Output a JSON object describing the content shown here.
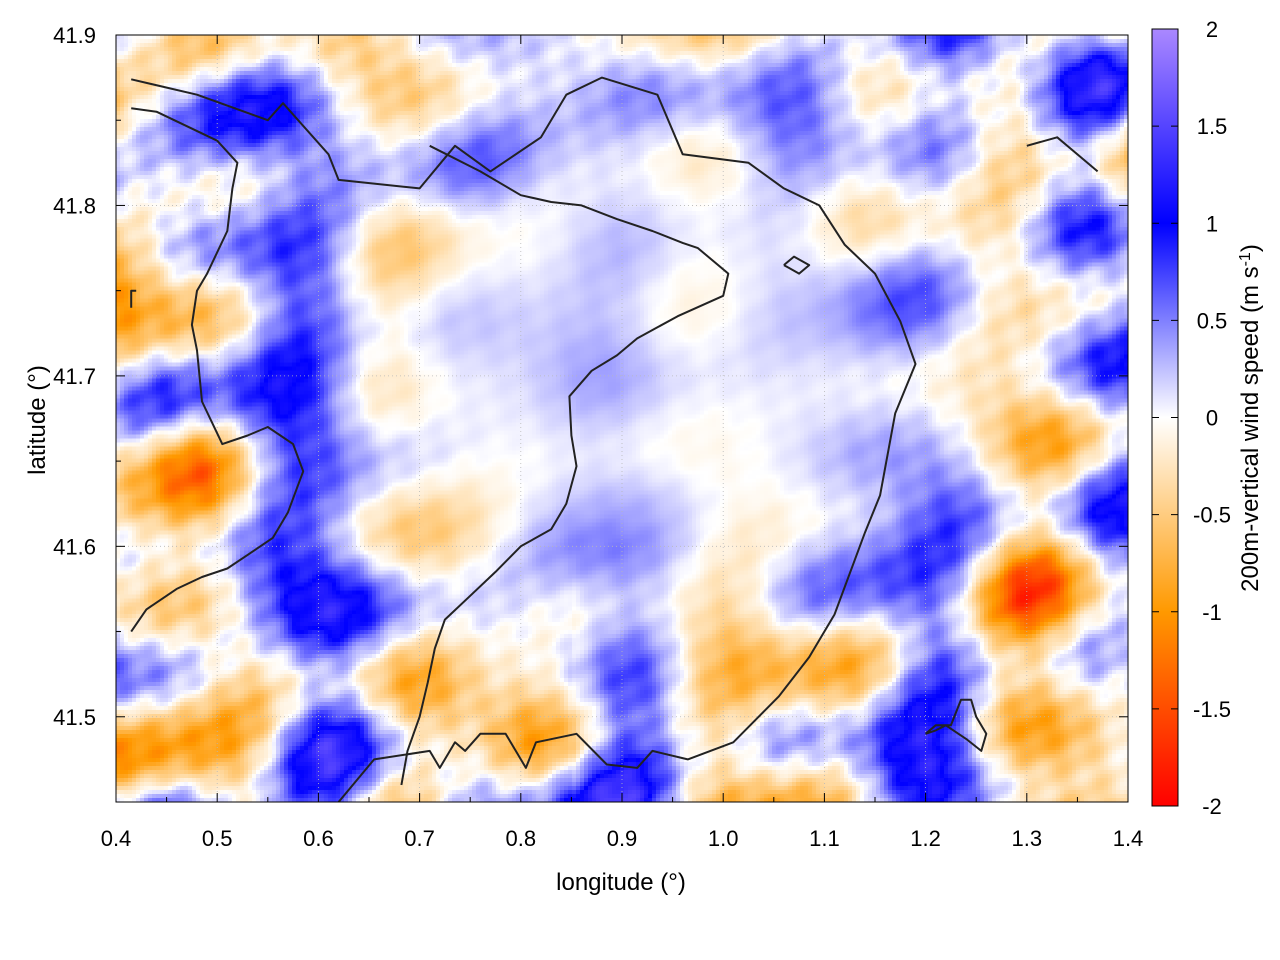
{
  "chart_data": {
    "type": "heatmap",
    "xlabel": "longitude (°)",
    "ylabel": "latitude (°)",
    "colorbar_label": "200m-vertical wind speed (m s",
    "colorbar_label_sup": "-1",
    "colorbar_label_close": ")",
    "xlim": [
      0.4,
      1.4
    ],
    "ylim": [
      41.45,
      41.9
    ],
    "x_ticks": [
      0.4,
      0.5,
      0.6,
      0.7,
      0.8,
      0.9,
      1.0,
      1.1,
      1.2,
      1.3,
      1.4
    ],
    "x_tick_labels": [
      "0.4",
      "0.5",
      "0.6",
      "0.7",
      "0.8",
      "0.9",
      "1.0",
      "1.1",
      "1.2",
      "1.3",
      "1.4"
    ],
    "y_ticks": [
      41.5,
      41.6,
      41.7,
      41.8,
      41.9
    ],
    "y_tick_labels": [
      "41.5",
      "41.6",
      "41.7",
      "41.8",
      "41.9"
    ],
    "colorbar": {
      "range": [
        -2,
        2
      ],
      "ticks": [
        -2,
        -1.5,
        -1,
        -0.5,
        0,
        0.5,
        1,
        1.5,
        2
      ],
      "tick_labels": [
        "-2",
        "-1.5",
        "-1",
        "-0.5",
        "0",
        "0.5",
        "1",
        "1.5",
        "2"
      ],
      "stops": [
        {
          "v": -2,
          "color": "#ff0000"
        },
        {
          "v": -1,
          "color": "#ff9900"
        },
        {
          "v": 0,
          "color": "#ffffff"
        },
        {
          "v": 1,
          "color": "#0000ff"
        },
        {
          "v": 2,
          "color": "#aa88ff"
        }
      ]
    },
    "grid": true,
    "grid_style": "dotted",
    "contour_color": "#222222",
    "contours": [
      [
        [
          0.415,
          41.874
        ],
        [
          0.48,
          41.865
        ],
        [
          0.55,
          41.85
        ],
        [
          0.565,
          41.86
        ],
        [
          0.61,
          41.83
        ],
        [
          0.62,
          41.815
        ],
        [
          0.7,
          41.81
        ],
        [
          0.735,
          41.835
        ],
        [
          0.77,
          41.82
        ],
        [
          0.82,
          41.84
        ],
        [
          0.845,
          41.865
        ],
        [
          0.88,
          41.875
        ],
        [
          0.935,
          41.865
        ],
        [
          0.96,
          41.83
        ],
        [
          1.025,
          41.825
        ],
        [
          1.06,
          41.81
        ],
        [
          1.095,
          41.8
        ],
        [
          1.12,
          41.777
        ],
        [
          1.15,
          41.76
        ],
        [
          1.175,
          41.732
        ],
        [
          1.19,
          41.707
        ],
        [
          1.17,
          41.678
        ],
        [
          1.155,
          41.63
        ],
        [
          1.14,
          41.608
        ],
        [
          1.11,
          41.56
        ],
        [
          1.085,
          41.535
        ],
        [
          1.055,
          41.512
        ],
        [
          1.01,
          41.485
        ],
        [
          0.965,
          41.475
        ],
        [
          0.93,
          41.48
        ],
        [
          0.915,
          41.47
        ],
        [
          0.885,
          41.472
        ],
        [
          0.855,
          41.49
        ],
        [
          0.815,
          41.485
        ],
        [
          0.805,
          41.47
        ],
        [
          0.785,
          41.49
        ],
        [
          0.76,
          41.49
        ],
        [
          0.745,
          41.48
        ],
        [
          0.735,
          41.485
        ],
        [
          0.72,
          41.47
        ],
        [
          0.71,
          41.48
        ],
        [
          0.655,
          41.475
        ],
        [
          0.62,
          41.45
        ]
      ],
      [
        [
          0.415,
          41.857
        ],
        [
          0.44,
          41.855
        ],
        [
          0.5,
          41.838
        ],
        [
          0.52,
          41.825
        ],
        [
          0.515,
          41.81
        ],
        [
          0.51,
          41.785
        ],
        [
          0.49,
          41.76
        ],
        [
          0.48,
          41.75
        ],
        [
          0.475,
          41.73
        ],
        [
          0.48,
          41.715
        ],
        [
          0.485,
          41.685
        ],
        [
          0.505,
          41.66
        ],
        [
          0.53,
          41.665
        ],
        [
          0.55,
          41.67
        ],
        [
          0.575,
          41.66
        ],
        [
          0.585,
          41.644
        ],
        [
          0.57,
          41.62
        ],
        [
          0.555,
          41.605
        ],
        [
          0.53,
          41.595
        ],
        [
          0.51,
          41.587
        ],
        [
          0.485,
          41.582
        ],
        [
          0.46,
          41.575
        ],
        [
          0.43,
          41.563
        ],
        [
          0.415,
          41.55
        ]
      ],
      [
        [
          0.71,
          41.835
        ],
        [
          0.76,
          41.82
        ],
        [
          0.8,
          41.806
        ],
        [
          0.83,
          41.802
        ],
        [
          0.86,
          41.8
        ],
        [
          0.895,
          41.792
        ],
        [
          0.93,
          41.785
        ],
        [
          0.96,
          41.778
        ],
        [
          0.975,
          41.775
        ],
        [
          1.005,
          41.76
        ],
        [
          1.0,
          41.747
        ],
        [
          0.955,
          41.735
        ],
        [
          0.915,
          41.722
        ],
        [
          0.895,
          41.712
        ],
        [
          0.87,
          41.703
        ],
        [
          0.848,
          41.688
        ],
        [
          0.85,
          41.665
        ],
        [
          0.855,
          41.647
        ],
        [
          0.845,
          41.625
        ],
        [
          0.83,
          41.61
        ],
        [
          0.8,
          41.6
        ],
        [
          0.775,
          41.585
        ],
        [
          0.75,
          41.571
        ],
        [
          0.725,
          41.557
        ],
        [
          0.715,
          41.54
        ],
        [
          0.708,
          41.52
        ],
        [
          0.7,
          41.5
        ],
        [
          0.688,
          41.48
        ],
        [
          0.682,
          41.46
        ]
      ],
      [
        [
          0.415,
          41.74
        ],
        [
          0.415,
          41.75
        ],
        [
          0.42,
          41.75
        ]
      ],
      [
        [
          1.06,
          41.765
        ],
        [
          1.075,
          41.76
        ],
        [
          1.085,
          41.765
        ],
        [
          1.07,
          41.77
        ],
        [
          1.06,
          41.765
        ]
      ],
      [
        [
          1.3,
          41.835
        ],
        [
          1.33,
          41.84
        ],
        [
          1.37,
          41.82
        ]
      ],
      [
        [
          1.2,
          41.49
        ],
        [
          1.21,
          41.492
        ],
        [
          1.22,
          41.495
        ],
        [
          1.24,
          41.487
        ],
        [
          1.255,
          41.48
        ],
        [
          1.26,
          41.49
        ],
        [
          1.25,
          41.5
        ],
        [
          1.245,
          41.51
        ],
        [
          1.235,
          41.51
        ],
        [
          1.225,
          41.495
        ],
        [
          1.21,
          41.495
        ],
        [
          1.2,
          41.49
        ]
      ]
    ]
  }
}
